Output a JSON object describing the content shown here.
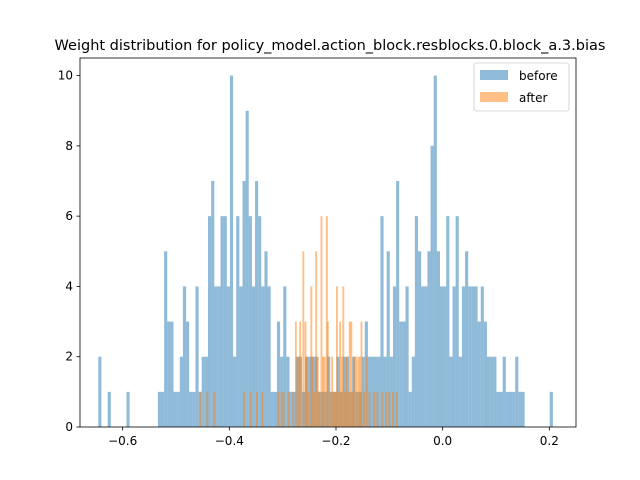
{
  "chart_data": {
    "type": "histogram",
    "title": "Weight distribution for policy_model.action_block.resblocks.0.block_a.3.bias",
    "xlabel": "",
    "ylabel": "",
    "xlim": [
      -0.68,
      0.25
    ],
    "ylim": [
      0,
      10.5
    ],
    "x_ticks": [
      -0.6,
      -0.4,
      -0.2,
      0.0,
      0.2
    ],
    "x_tick_labels": [
      "−0.6",
      "−0.4",
      "−0.2",
      "0.0",
      "0.2"
    ],
    "y_ticks": [
      0,
      2,
      4,
      6,
      8,
      10
    ],
    "y_tick_labels": [
      "0",
      "2",
      "4",
      "6",
      "8",
      "10"
    ],
    "grid": false,
    "legend": {
      "placement": "top-right",
      "entries": [
        "before",
        "after"
      ]
    },
    "series": [
      {
        "name": "before",
        "color": "#1f77b4",
        "opacity": 0.5,
        "bins": [
          [
            -0.6457,
            -0.6399,
            2
          ],
          [
            -0.6281,
            -0.6222,
            1
          ],
          [
            -0.5928,
            -0.587,
            1
          ],
          [
            -0.534,
            -0.5282,
            1
          ],
          [
            -0.5282,
            -0.5223,
            1
          ],
          [
            -0.5223,
            -0.5164,
            5
          ],
          [
            -0.5164,
            -0.5105,
            3
          ],
          [
            -0.5105,
            -0.5047,
            3
          ],
          [
            -0.5047,
            -0.4988,
            1
          ],
          [
            -0.4988,
            -0.4929,
            1
          ],
          [
            -0.4929,
            -0.487,
            2
          ],
          [
            -0.487,
            -0.4811,
            4
          ],
          [
            -0.4811,
            -0.4753,
            3
          ],
          [
            -0.4753,
            -0.4694,
            1
          ],
          [
            -0.4694,
            -0.4635,
            1
          ],
          [
            -0.4635,
            -0.4576,
            4
          ],
          [
            -0.4576,
            -0.4518,
            1
          ],
          [
            -0.4518,
            -0.4459,
            2
          ],
          [
            -0.4459,
            -0.44,
            2
          ],
          [
            -0.44,
            -0.4341,
            6
          ],
          [
            -0.4341,
            -0.4282,
            7
          ],
          [
            -0.4282,
            -0.4224,
            4
          ],
          [
            -0.4224,
            -0.4165,
            4
          ],
          [
            -0.4165,
            -0.4106,
            6
          ],
          [
            -0.4106,
            -0.4047,
            6
          ],
          [
            -0.4047,
            -0.3989,
            4
          ],
          [
            -0.3989,
            -0.393,
            10
          ],
          [
            -0.393,
            -0.3871,
            2
          ],
          [
            -0.3871,
            -0.3812,
            6
          ],
          [
            -0.3812,
            -0.3753,
            4
          ],
          [
            -0.3753,
            -0.3695,
            7
          ],
          [
            -0.3695,
            -0.3636,
            9
          ],
          [
            -0.3636,
            -0.3577,
            6
          ],
          [
            -0.3577,
            -0.3518,
            4
          ],
          [
            -0.3518,
            -0.346,
            7
          ],
          [
            -0.346,
            -0.3401,
            6
          ],
          [
            -0.3401,
            -0.3342,
            4
          ],
          [
            -0.3342,
            -0.3283,
            5
          ],
          [
            -0.3283,
            -0.3224,
            4
          ],
          [
            -0.3224,
            -0.3166,
            1
          ],
          [
            -0.3166,
            -0.3107,
            1
          ],
          [
            -0.3107,
            -0.3048,
            3
          ],
          [
            -0.3048,
            -0.2989,
            2
          ],
          [
            -0.2989,
            -0.2931,
            4
          ],
          [
            -0.2931,
            -0.2872,
            2
          ],
          [
            -0.2872,
            -0.2813,
            1
          ],
          [
            -0.2813,
            -0.2754,
            1
          ],
          [
            -0.2754,
            -0.2695,
            2
          ],
          [
            -0.2695,
            -0.2637,
            2
          ],
          [
            -0.2637,
            -0.2578,
            1
          ],
          [
            -0.2578,
            -0.2519,
            2
          ],
          [
            -0.2519,
            -0.246,
            2
          ],
          [
            -0.246,
            -0.2402,
            2
          ],
          [
            -0.2402,
            -0.2343,
            2
          ],
          [
            -0.2343,
            -0.2284,
            1
          ],
          [
            -0.2284,
            -0.2225,
            1
          ],
          [
            -0.2225,
            -0.2166,
            1
          ],
          [
            -0.2166,
            -0.2108,
            2
          ],
          [
            -0.2108,
            -0.2049,
            1
          ],
          [
            -0.2049,
            -0.199,
            1
          ],
          [
            -0.199,
            -0.1931,
            2
          ],
          [
            -0.1931,
            -0.1873,
            1
          ],
          [
            -0.1873,
            -0.1814,
            2
          ],
          [
            -0.1814,
            -0.1755,
            2
          ],
          [
            -0.1755,
            -0.1696,
            1
          ],
          [
            -0.1696,
            -0.1637,
            2
          ],
          [
            -0.1637,
            -0.1579,
            1
          ],
          [
            -0.1579,
            -0.152,
            1
          ],
          [
            -0.152,
            -0.1461,
            2
          ],
          [
            -0.1461,
            -0.1402,
            3
          ],
          [
            -0.1402,
            -0.1344,
            2
          ],
          [
            -0.1344,
            -0.1285,
            2
          ],
          [
            -0.1285,
            -0.1226,
            2
          ],
          [
            -0.1226,
            -0.1167,
            2
          ],
          [
            -0.1167,
            -0.1108,
            6
          ],
          [
            -0.1108,
            -0.105,
            2
          ],
          [
            -0.105,
            -0.0991,
            5
          ],
          [
            -0.0991,
            -0.0932,
            2
          ],
          [
            -0.0932,
            -0.0873,
            4
          ],
          [
            -0.0873,
            -0.0815,
            7
          ],
          [
            -0.0815,
            -0.0756,
            3
          ],
          [
            -0.0756,
            -0.0697,
            3
          ],
          [
            -0.0697,
            -0.0638,
            4
          ],
          [
            -0.0638,
            -0.0579,
            1
          ],
          [
            -0.0579,
            -0.0521,
            2
          ],
          [
            -0.0521,
            -0.0462,
            6
          ],
          [
            -0.0462,
            -0.0403,
            5
          ],
          [
            -0.0403,
            -0.0344,
            4
          ],
          [
            -0.0344,
            -0.0286,
            4
          ],
          [
            -0.0286,
            -0.0227,
            5
          ],
          [
            -0.0227,
            -0.0168,
            8
          ],
          [
            -0.0168,
            -0.0109,
            10
          ],
          [
            -0.0109,
            -0.005,
            5
          ],
          [
            -0.005,
            0.0008,
            4
          ],
          [
            0.0008,
            0.0067,
            4
          ],
          [
            0.0067,
            0.0126,
            6
          ],
          [
            0.0126,
            0.0185,
            2
          ],
          [
            0.0185,
            0.0243,
            4
          ],
          [
            0.0243,
            0.0302,
            6
          ],
          [
            0.0302,
            0.0361,
            2
          ],
          [
            0.0361,
            0.042,
            4
          ],
          [
            0.042,
            0.0479,
            5
          ],
          [
            0.0479,
            0.0537,
            4
          ],
          [
            0.0537,
            0.0596,
            4
          ],
          [
            0.0596,
            0.0655,
            4
          ],
          [
            0.0655,
            0.0714,
            3
          ],
          [
            0.0714,
            0.0772,
            4
          ],
          [
            0.0772,
            0.0831,
            3
          ],
          [
            0.0831,
            0.089,
            2
          ],
          [
            0.089,
            0.0949,
            2
          ],
          [
            0.0949,
            0.1008,
            2
          ],
          [
            0.1008,
            0.1066,
            1
          ],
          [
            0.1066,
            0.1125,
            1
          ],
          [
            0.1125,
            0.1184,
            2
          ],
          [
            0.1184,
            0.1243,
            1
          ],
          [
            0.1243,
            0.1301,
            1
          ],
          [
            0.1301,
            0.136,
            1
          ],
          [
            0.136,
            0.1419,
            2
          ],
          [
            0.1419,
            0.1478,
            1
          ],
          [
            0.1478,
            0.1537,
            1
          ],
          [
            0.2007,
            0.2066,
            1
          ]
        ]
      },
      {
        "name": "after",
        "color": "#ff7f0e",
        "opacity": 0.5,
        "bins": [
          [
            -0.456,
            -0.4525,
            1
          ],
          [
            -0.443,
            -0.4395,
            1
          ],
          [
            -0.43,
            -0.4265,
            1
          ],
          [
            -0.374,
            -0.3705,
            1
          ],
          [
            -0.362,
            -0.3585,
            1
          ],
          [
            -0.35,
            -0.3465,
            1
          ],
          [
            -0.34,
            -0.3365,
            1
          ],
          [
            -0.31,
            -0.3065,
            1
          ],
          [
            -0.304,
            -0.3005,
            1
          ],
          [
            -0.3,
            -0.2965,
            1
          ],
          [
            -0.291,
            -0.2875,
            1
          ],
          [
            -0.282,
            -0.2785,
            1
          ],
          [
            -0.277,
            -0.2735,
            3
          ],
          [
            -0.273,
            -0.2695,
            2
          ],
          [
            -0.269,
            -0.2655,
            3
          ],
          [
            -0.263,
            -0.2595,
            5
          ],
          [
            -0.259,
            -0.2555,
            3
          ],
          [
            -0.257,
            -0.2535,
            2
          ],
          [
            -0.253,
            -0.2495,
            1
          ],
          [
            -0.248,
            -0.2445,
            4
          ],
          [
            -0.246,
            -0.2425,
            2
          ],
          [
            -0.243,
            -0.2395,
            1
          ],
          [
            -0.239,
            -0.2355,
            5
          ],
          [
            -0.236,
            -0.2325,
            2
          ],
          [
            -0.233,
            -0.2295,
            1
          ],
          [
            -0.229,
            -0.2255,
            6
          ],
          [
            -0.226,
            -0.2225,
            2
          ],
          [
            -0.223,
            -0.2195,
            2
          ],
          [
            -0.219,
            -0.2155,
            6
          ],
          [
            -0.217,
            -0.2135,
            3
          ],
          [
            -0.213,
            -0.2095,
            1
          ],
          [
            -0.209,
            -0.2055,
            2
          ],
          [
            -0.206,
            -0.2025,
            1
          ],
          [
            -0.203,
            -0.1995,
            1
          ],
          [
            -0.2,
            -0.1965,
            4
          ],
          [
            -0.197,
            -0.1935,
            1
          ],
          [
            -0.194,
            -0.1905,
            3
          ],
          [
            -0.191,
            -0.1875,
            2
          ],
          [
            -0.188,
            -0.1845,
            4
          ],
          [
            -0.185,
            -0.1815,
            1
          ],
          [
            -0.182,
            -0.1785,
            2
          ],
          [
            -0.179,
            -0.1755,
            1
          ],
          [
            -0.176,
            -0.1725,
            3
          ],
          [
            -0.173,
            -0.1695,
            3
          ],
          [
            -0.17,
            -0.1665,
            1
          ],
          [
            -0.168,
            -0.1645,
            2
          ],
          [
            -0.164,
            -0.1605,
            2
          ],
          [
            -0.16,
            -0.1565,
            2
          ],
          [
            -0.157,
            -0.1535,
            2
          ],
          [
            -0.154,
            -0.1505,
            3
          ],
          [
            -0.149,
            -0.1455,
            1
          ],
          [
            -0.144,
            -0.1405,
            2
          ],
          [
            -0.139,
            -0.1355,
            1
          ],
          [
            -0.13,
            -0.1265,
            1
          ],
          [
            -0.124,
            -0.1205,
            1
          ],
          [
            -0.115,
            -0.1115,
            1
          ],
          [
            -0.108,
            -0.1045,
            1
          ],
          [
            -0.102,
            -0.0985,
            1
          ],
          [
            -0.095,
            -0.0915,
            1
          ],
          [
            -0.088,
            -0.0845,
            1
          ]
        ]
      }
    ]
  }
}
